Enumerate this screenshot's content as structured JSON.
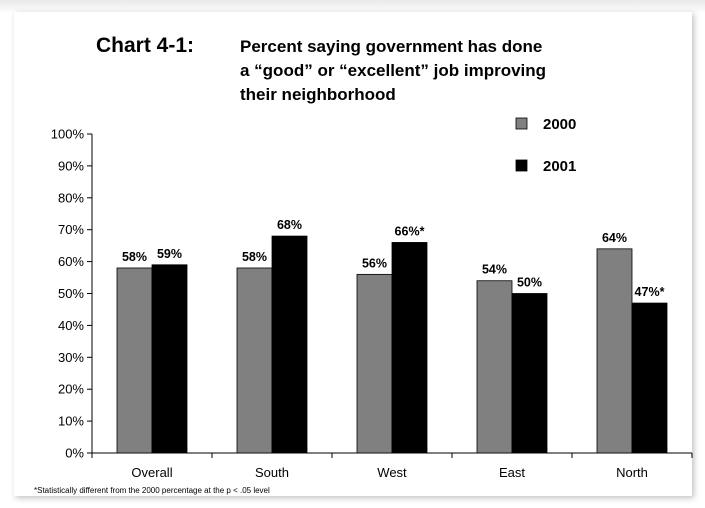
{
  "chart_label": "Chart 4-1:",
  "footnote": "*Statistically different from the 2000 percentage at the p < .05 level",
  "colors": {
    "series_2000": "#808080",
    "series_2001": "#000000"
  },
  "chart_data": {
    "type": "bar",
    "title": "Percent saying government has done\na “good” or “excellent” job improving\ntheir neighborhood",
    "categories": [
      "Overall",
      "South",
      "West",
      "East",
      "North"
    ],
    "series": [
      {
        "name": "2000",
        "values": [
          58,
          58,
          56,
          54,
          64
        ],
        "labels": [
          "58%",
          "58%",
          "56%",
          "54%",
          "64%"
        ]
      },
      {
        "name": "2001",
        "values": [
          59,
          68,
          66,
          50,
          47
        ],
        "labels": [
          "59%",
          "68%",
          "66%*",
          "50%",
          "47%*"
        ]
      }
    ],
    "ylim": [
      0,
      100
    ],
    "yticks": [
      "0%",
      "10%",
      "20%",
      "30%",
      "40%",
      "50%",
      "60%",
      "70%",
      "80%",
      "90%",
      "100%"
    ],
    "grid": false,
    "legend_position": "top-right"
  }
}
